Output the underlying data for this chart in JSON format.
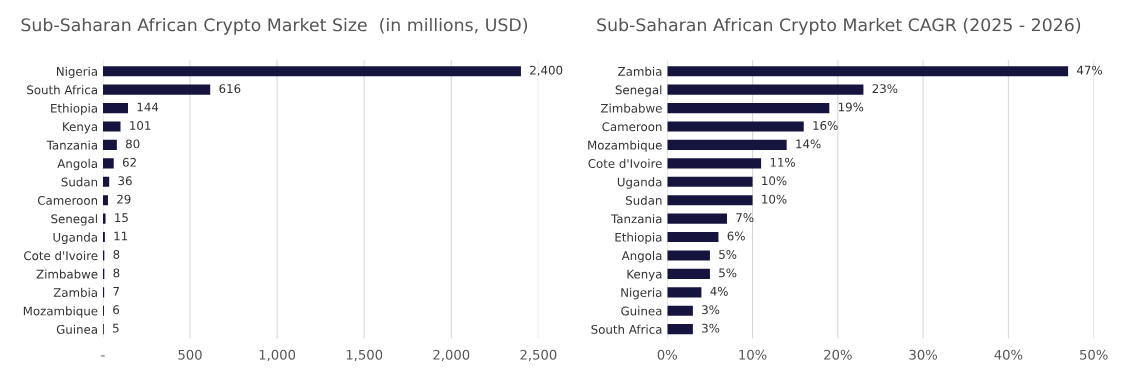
{
  "chart_data": [
    {
      "type": "bar",
      "orientation": "horizontal",
      "title": "Sub-Saharan African Crypto Market Size  (in millions, USD)",
      "categories": [
        "Nigeria",
        "South Africa",
        "Ethiopia",
        "Kenya",
        "Tanzania",
        "Angola",
        "Sudan",
        "Cameroon",
        "Senegal",
        "Uganda",
        "Cote d'Ivoire",
        "Zimbabwe",
        "Zambia",
        "Mozambique",
        "Guinea"
      ],
      "values": [
        2400,
        616,
        144,
        101,
        80,
        62,
        36,
        29,
        15,
        11,
        8,
        8,
        7,
        6,
        5
      ],
      "value_labels": [
        "2,400",
        "616",
        "144",
        "101",
        "80",
        "62",
        "36",
        "29",
        "15",
        "11",
        "8",
        "8",
        "7",
        "6",
        "5"
      ],
      "color": "#14143f",
      "xlim": [
        0,
        2500
      ],
      "xticks": [
        {
          "value": 0,
          "label": "-"
        },
        500,
        {
          "value": 1000,
          "label": "1,000"
        },
        {
          "value": 1500,
          "label": "1,500"
        },
        {
          "value": 2000,
          "label": "2,000"
        },
        {
          "value": 2500,
          "label": "2,500"
        }
      ],
      "grid": "x"
    },
    {
      "type": "bar",
      "orientation": "horizontal",
      "title": "Sub-Saharan African Crypto Market CAGR (2025 - 2026)",
      "categories": [
        "Zambia",
        "Senegal",
        "Zimbabwe",
        "Cameroon",
        "Mozambique",
        "Cote d'Ivoire",
        "Uganda",
        "Sudan",
        "Tanzania",
        "Ethiopia",
        "Angola",
        "Kenya",
        "Nigeria",
        "Guinea",
        "South Africa"
      ],
      "values": [
        47,
        23,
        19,
        16,
        14,
        11,
        10,
        10,
        7,
        6,
        5,
        5,
        4,
        3,
        3
      ],
      "value_labels": [
        "47%",
        "23%",
        "19%",
        "16%",
        "14%",
        "11%",
        "10%",
        "10%",
        "7%",
        "6%",
        "5%",
        "5%",
        "4%",
        "3%",
        "3%"
      ],
      "color": "#14143f",
      "xlim": [
        0,
        50
      ],
      "xticks": [
        {
          "value": 0,
          "label": "0%"
        },
        {
          "value": 10,
          "label": "10%"
        },
        {
          "value": 20,
          "label": "20%"
        },
        {
          "value": 30,
          "label": "30%"
        },
        {
          "value": 40,
          "label": "40%"
        },
        {
          "value": 50,
          "label": "50%"
        }
      ],
      "grid": "x"
    }
  ]
}
